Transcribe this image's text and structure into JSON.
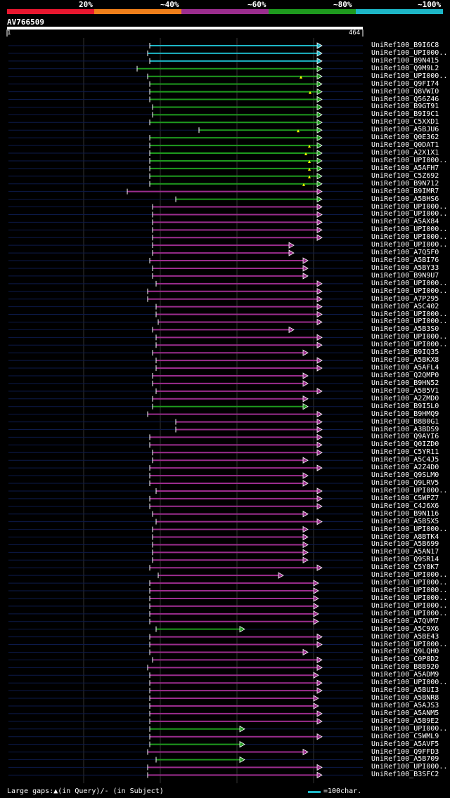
{
  "query": {
    "id": "AV766509",
    "start": "1",
    "end": "464"
  },
  "legend": {
    "colors": [
      "#e8172f",
      "#ef7f1a",
      "#9b2d8e",
      "#1e9a1e",
      "#1db6c6"
    ],
    "labels": [
      "20%",
      "~40%",
      "~60%",
      "~80%",
      "~100%"
    ]
  },
  "footer": {
    "gaps": "Large gaps:▲(in Query)/- (in Subject)",
    "scale": "=100char."
  },
  "hits": [
    {
      "name": "UniRef100_B9I6C8",
      "start": 213,
      "end": 458,
      "color": "#1db6c6",
      "gaps": []
    },
    {
      "name": "UniRef100_UPI000..",
      "start": 210,
      "end": 458,
      "color": "#1db6c6",
      "gaps": []
    },
    {
      "name": "UniRef100_B9N415",
      "start": 213,
      "end": 458,
      "color": "#1db6c6",
      "gaps": []
    },
    {
      "name": "UniRef100_Q9M9L2",
      "start": 195,
      "end": 458,
      "color": "#1e9a1e",
      "gaps": []
    },
    {
      "name": "UniRef100_UPI000..",
      "start": 210,
      "end": 458,
      "color": "#1e9a1e",
      "gaps": [
        428
      ]
    },
    {
      "name": "UniRef100_Q9FI74",
      "start": 213,
      "end": 458,
      "color": "#1e9a1e",
      "gaps": []
    },
    {
      "name": "UniRef100_Q8VWI0",
      "start": 213,
      "end": 458,
      "color": "#1e9a1e",
      "gaps": [
        441
      ]
    },
    {
      "name": "UniRef100_Q56Z46",
      "start": 213,
      "end": 458,
      "color": "#1e9a1e",
      "gaps": []
    },
    {
      "name": "UniRef100_B9GT91",
      "start": 217,
      "end": 458,
      "color": "#1e9a1e",
      "gaps": []
    },
    {
      "name": "UniRef100_B9I9C1",
      "start": 217,
      "end": 458,
      "color": "#1e9a1e",
      "gaps": []
    },
    {
      "name": "UniRef100_C5XXD1",
      "start": 213,
      "end": 458,
      "color": "#1e9a1e",
      "gaps": []
    },
    {
      "name": "UniRef100_A5BJU6",
      "start": 283,
      "end": 458,
      "color": "#1e9a1e",
      "gaps": [
        424
      ]
    },
    {
      "name": "UniRef100_Q0E362",
      "start": 213,
      "end": 458,
      "color": "#1e9a1e",
      "gaps": []
    },
    {
      "name": "UniRef100_Q0DAT1",
      "start": 213,
      "end": 458,
      "color": "#1e9a1e",
      "gaps": [
        440
      ]
    },
    {
      "name": "UniRef100_A2X1X1",
      "start": 213,
      "end": 458,
      "color": "#1e9a1e",
      "gaps": [
        435
      ]
    },
    {
      "name": "UniRef100_UPI000..",
      "start": 213,
      "end": 458,
      "color": "#1e9a1e",
      "gaps": [
        440
      ]
    },
    {
      "name": "UniRef100_A5AFH7",
      "start": 213,
      "end": 458,
      "color": "#1e9a1e",
      "gaps": [
        440
      ]
    },
    {
      "name": "UniRef100_C5Z692",
      "start": 213,
      "end": 458,
      "color": "#1e9a1e",
      "gaps": [
        440
      ]
    },
    {
      "name": "UniRef100_B9N712",
      "start": 213,
      "end": 458,
      "color": "#1e9a1e",
      "gaps": [
        432
      ]
    },
    {
      "name": "UniRef100_B9IMR7",
      "start": 181,
      "end": 458,
      "color": "#9b2d8e",
      "gaps": []
    },
    {
      "name": "UniRef100_A5BHS6",
      "start": 250,
      "end": 458,
      "color": "#1e9a1e",
      "gaps": []
    },
    {
      "name": "UniRef100_UPI000..",
      "start": 217,
      "end": 458,
      "color": "#9b2d8e",
      "gaps": []
    },
    {
      "name": "UniRef100_UPI000..",
      "start": 217,
      "end": 458,
      "color": "#9b2d8e",
      "gaps": []
    },
    {
      "name": "UniRef100_A5AX84",
      "start": 217,
      "end": 458,
      "color": "#9b2d8e",
      "gaps": []
    },
    {
      "name": "UniRef100_UPI000..",
      "start": 217,
      "end": 458,
      "color": "#9b2d8e",
      "gaps": []
    },
    {
      "name": "UniRef100_UPI000..",
      "start": 217,
      "end": 458,
      "color": "#9b2d8e",
      "gaps": []
    },
    {
      "name": "UniRef100_UPI000..",
      "start": 217,
      "end": 418,
      "color": "#9b2d8e",
      "gaps": []
    },
    {
      "name": "UniRef100_A7Q5F0",
      "start": 217,
      "end": 418,
      "color": "#9b2d8e",
      "gaps": []
    },
    {
      "name": "UniRef100_A5BI76",
      "start": 213,
      "end": 438,
      "color": "#9b2d8e",
      "gaps": []
    },
    {
      "name": "UniRef100_A5BY33",
      "start": 217,
      "end": 438,
      "color": "#9b2d8e",
      "gaps": []
    },
    {
      "name": "UniRef100_B9N9U7",
      "start": 217,
      "end": 438,
      "color": "#9b2d8e",
      "gaps": []
    },
    {
      "name": "UniRef100_UPI000..",
      "start": 222,
      "end": 458,
      "color": "#9b2d8e",
      "gaps": []
    },
    {
      "name": "UniRef100_UPI000..",
      "start": 210,
      "end": 458,
      "color": "#9b2d8e",
      "gaps": []
    },
    {
      "name": "UniRef100_A7P295",
      "start": 210,
      "end": 458,
      "color": "#9b2d8e",
      "gaps": []
    },
    {
      "name": "UniRef100_A5C402",
      "start": 222,
      "end": 458,
      "color": "#9b2d8e",
      "gaps": []
    },
    {
      "name": "UniRef100_UPI000..",
      "start": 222,
      "end": 458,
      "color": "#9b2d8e",
      "gaps": []
    },
    {
      "name": "UniRef100_UPI000..",
      "start": 225,
      "end": 458,
      "color": "#9b2d8e",
      "gaps": []
    },
    {
      "name": "UniRef100_A5B3S0",
      "start": 217,
      "end": 418,
      "color": "#9b2d8e",
      "gaps": []
    },
    {
      "name": "UniRef100_UPI000..",
      "start": 222,
      "end": 458,
      "color": "#9b2d8e",
      "gaps": []
    },
    {
      "name": "UniRef100_UPI000..",
      "start": 222,
      "end": 458,
      "color": "#9b2d8e",
      "gaps": []
    },
    {
      "name": "UniRef100_B9IQ35",
      "start": 217,
      "end": 438,
      "color": "#9b2d8e",
      "gaps": []
    },
    {
      "name": "UniRef100_A5BKX8",
      "start": 222,
      "end": 458,
      "color": "#9b2d8e",
      "gaps": []
    },
    {
      "name": "UniRef100_A5AFL4",
      "start": 222,
      "end": 458,
      "color": "#9b2d8e",
      "gaps": []
    },
    {
      "name": "UniRef100_Q2QMP0",
      "start": 217,
      "end": 438,
      "color": "#9b2d8e",
      "gaps": []
    },
    {
      "name": "UniRef100_B9HN52",
      "start": 217,
      "end": 438,
      "color": "#9b2d8e",
      "gaps": []
    },
    {
      "name": "UniRef100_A5B5V1",
      "start": 222,
      "end": 458,
      "color": "#9b2d8e",
      "gaps": []
    },
    {
      "name": "UniRef100_A2ZMD0",
      "start": 217,
      "end": 438,
      "color": "#9b2d8e",
      "gaps": []
    },
    {
      "name": "UniRef100_B9I5L0",
      "start": 217,
      "end": 438,
      "color": "#1e9a1e",
      "gaps": []
    },
    {
      "name": "UniRef100_B9HMQ9",
      "start": 210,
      "end": 458,
      "color": "#9b2d8e",
      "gaps": []
    },
    {
      "name": "UniRef100_B8B0G1",
      "start": 250,
      "end": 458,
      "color": "#9b2d8e",
      "gaps": []
    },
    {
      "name": "UniRef100_A3BDS9",
      "start": 250,
      "end": 458,
      "color": "#9b2d8e",
      "gaps": []
    },
    {
      "name": "UniRef100_Q9AYI6",
      "start": 213,
      "end": 458,
      "color": "#9b2d8e",
      "gaps": []
    },
    {
      "name": "UniRef100_Q0IZD0",
      "start": 213,
      "end": 458,
      "color": "#9b2d8e",
      "gaps": []
    },
    {
      "name": "UniRef100_C5YR11",
      "start": 217,
      "end": 458,
      "color": "#9b2d8e",
      "gaps": []
    },
    {
      "name": "UniRef100_A5C4J5",
      "start": 217,
      "end": 438,
      "color": "#9b2d8e",
      "gaps": []
    },
    {
      "name": "UniRef100_A2Z4D0",
      "start": 213,
      "end": 458,
      "color": "#9b2d8e",
      "gaps": []
    },
    {
      "name": "UniRef100_Q9SLM0",
      "start": 213,
      "end": 438,
      "color": "#9b2d8e",
      "gaps": []
    },
    {
      "name": "UniRef100_Q9LRV5",
      "start": 213,
      "end": 438,
      "color": "#9b2d8e",
      "gaps": []
    },
    {
      "name": "UniRef100_UPI000..",
      "start": 222,
      "end": 458,
      "color": "#9b2d8e",
      "gaps": []
    },
    {
      "name": "UniRef100_C5WPZ7",
      "start": 213,
      "end": 458,
      "color": "#9b2d8e",
      "gaps": []
    },
    {
      "name": "UniRef100_C4J6X6",
      "start": 213,
      "end": 458,
      "color": "#9b2d8e",
      "gaps": []
    },
    {
      "name": "UniRef100_B9N116",
      "start": 217,
      "end": 438,
      "color": "#9b2d8e",
      "gaps": []
    },
    {
      "name": "UniRef100_A5B5X5",
      "start": 222,
      "end": 458,
      "color": "#9b2d8e",
      "gaps": []
    },
    {
      "name": "UniRef100_UPI000..",
      "start": 217,
      "end": 438,
      "color": "#9b2d8e",
      "gaps": []
    },
    {
      "name": "UniRef100_A8BTK4",
      "start": 217,
      "end": 438,
      "color": "#9b2d8e",
      "gaps": []
    },
    {
      "name": "UniRef100_A5B699",
      "start": 217,
      "end": 438,
      "color": "#9b2d8e",
      "gaps": []
    },
    {
      "name": "UniRef100_A5AN17",
      "start": 217,
      "end": 438,
      "color": "#9b2d8e",
      "gaps": []
    },
    {
      "name": "UniRef100_Q9SR14",
      "start": 217,
      "end": 438,
      "color": "#9b2d8e",
      "gaps": []
    },
    {
      "name": "UniRef100_C5Y8K7",
      "start": 213,
      "end": 458,
      "color": "#9b2d8e",
      "gaps": []
    },
    {
      "name": "UniRef100_UPI000..",
      "start": 225,
      "end": 403,
      "color": "#9b2d8e",
      "gaps": []
    },
    {
      "name": "UniRef100_UPI000..",
      "start": 213,
      "end": 453,
      "color": "#9b2d8e",
      "gaps": []
    },
    {
      "name": "UniRef100_UPI000..",
      "start": 213,
      "end": 453,
      "color": "#9b2d8e",
      "gaps": []
    },
    {
      "name": "UniRef100_UPI000..",
      "start": 213,
      "end": 453,
      "color": "#9b2d8e",
      "gaps": []
    },
    {
      "name": "UniRef100_UPI000..",
      "start": 213,
      "end": 453,
      "color": "#9b2d8e",
      "gaps": []
    },
    {
      "name": "UniRef100_UPI000..",
      "start": 213,
      "end": 453,
      "color": "#9b2d8e",
      "gaps": []
    },
    {
      "name": "UniRef100_A7QVM7",
      "start": 213,
      "end": 453,
      "color": "#9b2d8e",
      "gaps": []
    },
    {
      "name": "UniRef100_A5C9X6",
      "start": 222,
      "end": 348,
      "color": "#1e9a1e",
      "gaps": []
    },
    {
      "name": "UniRef100_A5BE43",
      "start": 213,
      "end": 458,
      "color": "#9b2d8e",
      "gaps": []
    },
    {
      "name": "UniRef100_UPI000..",
      "start": 213,
      "end": 458,
      "color": "#9b2d8e",
      "gaps": []
    },
    {
      "name": "UniRef100_Q9LQH0",
      "start": 213,
      "end": 438,
      "color": "#9b2d8e",
      "gaps": []
    },
    {
      "name": "UniRef100_C0P8D2",
      "start": 217,
      "end": 458,
      "color": "#9b2d8e",
      "gaps": []
    },
    {
      "name": "UniRef100_B8B920",
      "start": 210,
      "end": 458,
      "color": "#9b2d8e",
      "gaps": []
    },
    {
      "name": "UniRef100_A5ADM9",
      "start": 213,
      "end": 453,
      "color": "#9b2d8e",
      "gaps": []
    },
    {
      "name": "UniRef100_UPI000..",
      "start": 213,
      "end": 458,
      "color": "#9b2d8e",
      "gaps": []
    },
    {
      "name": "UniRef100_A5BUI3",
      "start": 213,
      "end": 458,
      "color": "#9b2d8e",
      "gaps": []
    },
    {
      "name": "UniRef100_A5BNR8",
      "start": 213,
      "end": 453,
      "color": "#9b2d8e",
      "gaps": []
    },
    {
      "name": "UniRef100_A5AJS3",
      "start": 213,
      "end": 453,
      "color": "#9b2d8e",
      "gaps": []
    },
    {
      "name": "UniRef100_A5ANM5",
      "start": 213,
      "end": 458,
      "color": "#9b2d8e",
      "gaps": []
    },
    {
      "name": "UniRef100_A5B9E2",
      "start": 213,
      "end": 458,
      "color": "#9b2d8e",
      "gaps": []
    },
    {
      "name": "UniRef100_UPI000..",
      "start": 213,
      "end": 348,
      "color": "#1e9a1e",
      "gaps": []
    },
    {
      "name": "UniRef100_C5WML9",
      "start": 213,
      "end": 458,
      "color": "#9b2d8e",
      "gaps": []
    },
    {
      "name": "UniRef100_A5AVF5",
      "start": 213,
      "end": 348,
      "color": "#1e9a1e",
      "gaps": []
    },
    {
      "name": "UniRef100_Q9FFD3",
      "start": 210,
      "end": 438,
      "color": "#9b2d8e",
      "gaps": []
    },
    {
      "name": "UniRef100_A5B709",
      "start": 222,
      "end": 348,
      "color": "#1e9a1e",
      "gaps": []
    },
    {
      "name": "UniRef100_UPI000..",
      "start": 210,
      "end": 458,
      "color": "#9b2d8e",
      "gaps": []
    },
    {
      "name": "UniRef100_B3SFC2",
      "start": 210,
      "end": 458,
      "color": "#9b2d8e",
      "gaps": []
    }
  ]
}
